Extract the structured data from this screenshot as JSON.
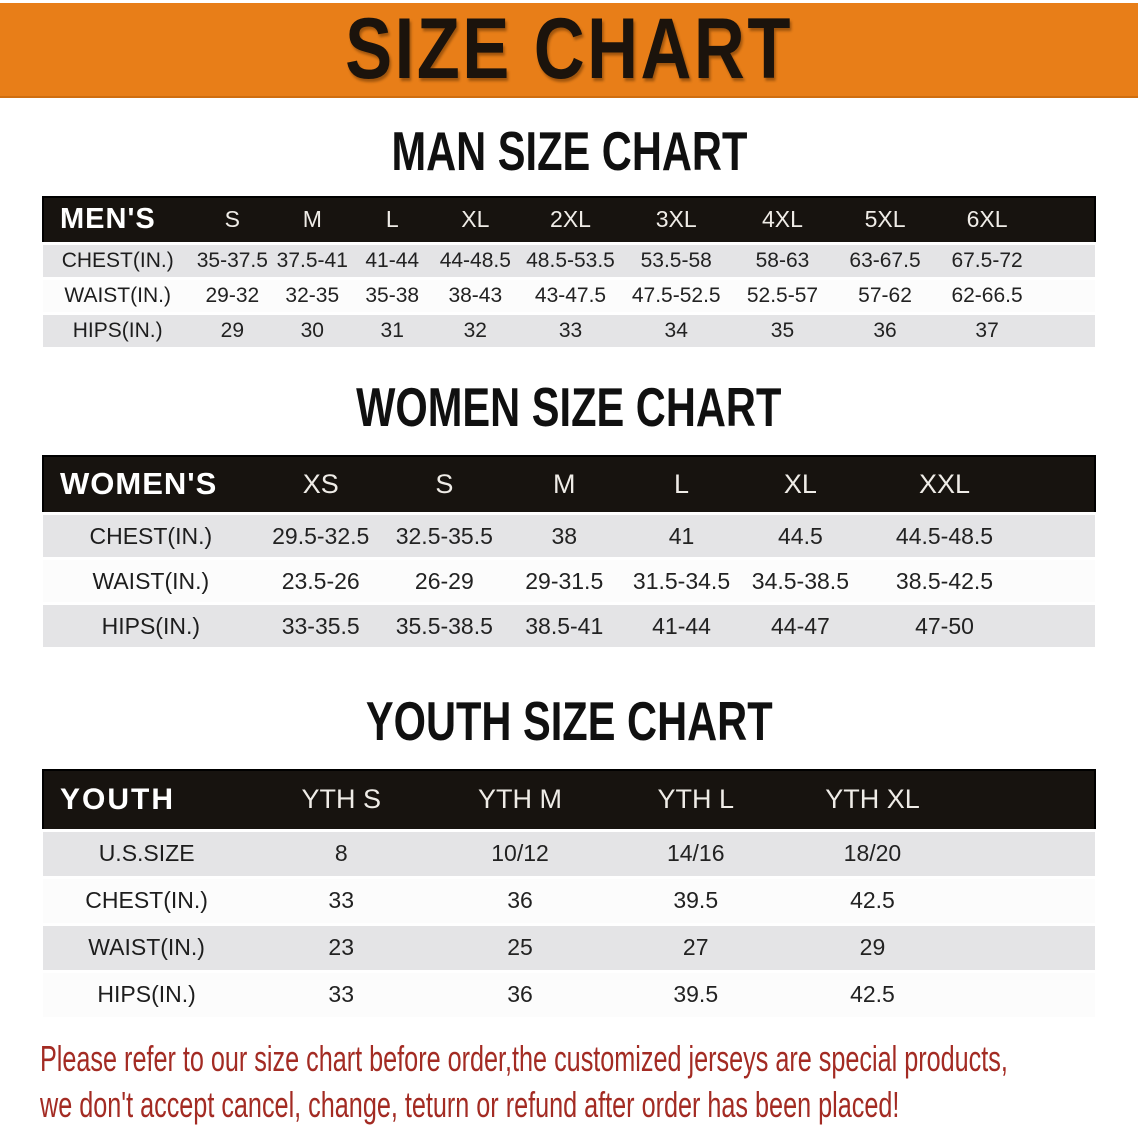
{
  "banner": {
    "title": "SIZE CHART",
    "bg_color": "#E87E18",
    "text_color": "#1B130C"
  },
  "sections": [
    {
      "heading": "MAN SIZE CHART",
      "table": {
        "group_label": "MEN'S",
        "columns": [
          "S",
          "M",
          "L",
          "XL",
          "2XL",
          "3XL",
          "4XL",
          "5XL",
          "6XL"
        ],
        "rows": [
          {
            "label": "CHEST(IN.)",
            "values": [
              "35-37.5",
              "37.5-41",
              "41-44",
              "44-48.5",
              "48.5-53.5",
              "53.5-58",
              "58-63",
              "63-67.5",
              "67.5-72"
            ]
          },
          {
            "label": "WAIST(IN.)",
            "values": [
              "29-32",
              "32-35",
              "35-38",
              "38-43",
              "43-47.5",
              "47.5-52.5",
              "52.5-57",
              "57-62",
              "62-66.5"
            ]
          },
          {
            "label": "HIPS(IN.)",
            "values": [
              "29",
              "30",
              "31",
              "32",
              "33",
              "34",
              "35",
              "36",
              "37"
            ]
          }
        ]
      }
    },
    {
      "heading": "WOMEN SIZE CHART",
      "table": {
        "group_label": "WOMEN'S",
        "columns": [
          "XS",
          "S",
          "M",
          "L",
          "XL",
          "XXL"
        ],
        "rows": [
          {
            "label": "CHEST(IN.)",
            "values": [
              "29.5-32.5",
              "32.5-35.5",
              "38",
              "41",
              "44.5",
              "44.5-48.5"
            ]
          },
          {
            "label": "WAIST(IN.)",
            "values": [
              "23.5-26",
              "26-29",
              "29-31.5",
              "31.5-34.5",
              "34.5-38.5",
              "38.5-42.5"
            ]
          },
          {
            "label": "HIPS(IN.)",
            "values": [
              "33-35.5",
              "35.5-38.5",
              "38.5-41",
              "41-44",
              "44-47",
              "47-50"
            ]
          }
        ]
      }
    },
    {
      "heading": "YOUTH SIZE CHART",
      "table": {
        "group_label": "YOUTH",
        "columns": [
          "YTH S",
          "YTH M",
          "YTH L",
          "YTH XL"
        ],
        "rows": [
          {
            "label": "U.S.SIZE",
            "values": [
              "8",
              "10/12",
              "14/16",
              "18/20"
            ]
          },
          {
            "label": "CHEST(IN.)",
            "values": [
              "33",
              "36",
              "39.5",
              "42.5"
            ]
          },
          {
            "label": "WAIST(IN.)",
            "values": [
              "23",
              "25",
              "27",
              "29"
            ]
          },
          {
            "label": "HIPS(IN.)",
            "values": [
              "33",
              "36",
              "39.5",
              "42.5"
            ]
          }
        ]
      }
    }
  ],
  "disclaimer": {
    "line1": "Please refer to our size chart before order,the customized jerseys are special products,",
    "line2": "we don't accept cancel, change, teturn or refund after order has been placed!",
    "color": "#A32B23"
  }
}
